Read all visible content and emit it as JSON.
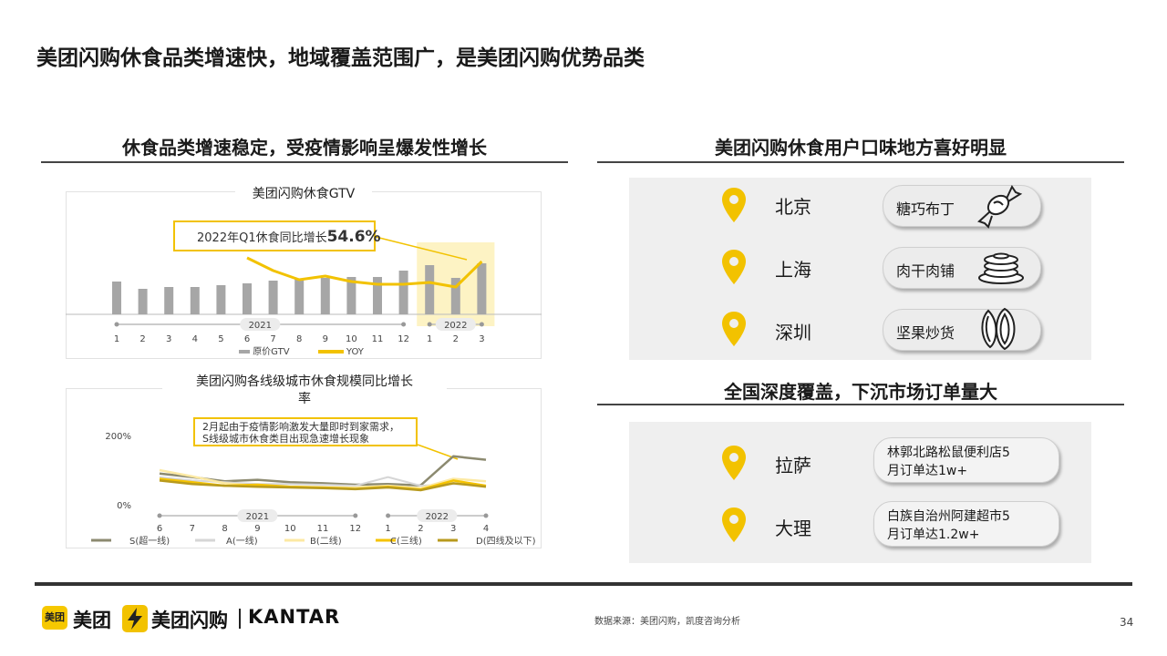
{
  "page": {
    "title": "美团闪购休食品类增速快，地域覆盖范围广，是美团闪购优势品类",
    "source": "数据来源：美团闪购，凯度咨询分析",
    "page_number": "34"
  },
  "left": {
    "heading": "休食品类增速稳定，受疫情影响呈爆发性增长"
  },
  "right": {
    "heading_top": "美团闪购休食用户口味地方喜好明显",
    "heading_bottom": "全国深度覆盖，下沉市场订单量大",
    "tastes": [
      {
        "city": "北京",
        "food": "糖巧布丁",
        "icon": "candy-icon"
      },
      {
        "city": "上海",
        "food": "肉干肉铺",
        "icon": "pancake-icon"
      },
      {
        "city": "深圳",
        "food": "坚果炒货",
        "icon": "nut-icon"
      }
    ],
    "coverage": [
      {
        "city": "拉萨",
        "store_line1": "林郭北路松鼠便利店5",
        "store_line2": "月订单达1w+"
      },
      {
        "city": "大理",
        "store_line1": "白族自治州阿建超市5",
        "store_line2": "月订单达1.2w+"
      }
    ]
  },
  "footer": {
    "logo1_box": "美团",
    "logo1_text": "美团",
    "logo2_text": "美团闪购",
    "logo3_text": "KANTAR"
  },
  "colors": {
    "accent": "#F2C200",
    "bar": "#a6a6a6",
    "highlight": "#fdf3c4",
    "series_S": "#8c8a70",
    "series_A": "#d6d6d6",
    "series_B": "#fce9a3",
    "series_C": "#f5c300",
    "series_D": "#b89a1e"
  },
  "chart_data": [
    {
      "type": "bar+line",
      "title": "美团闪购休食GTV",
      "callout_prefix": "2022年Q1休食同比增长",
      "callout_value": "54.6%",
      "categories": [
        "1",
        "2",
        "3",
        "4",
        "5",
        "6",
        "7",
        "8",
        "9",
        "10",
        "11",
        "12",
        "1",
        "2",
        "3"
      ],
      "year_groups": [
        {
          "label": "2021",
          "months": 12
        },
        {
          "label": "2022",
          "months": 3
        }
      ],
      "series": [
        {
          "name": "原价GTV",
          "kind": "bar",
          "values": [
            36,
            28,
            30,
            30,
            32,
            34,
            37,
            39,
            40,
            41,
            41,
            48,
            54,
            40,
            56
          ]
        },
        {
          "name": "YOY",
          "kind": "line",
          "values": [
            null,
            null,
            null,
            null,
            null,
            62,
            48,
            38,
            42,
            36,
            33,
            33,
            35,
            30,
            58
          ]
        }
      ],
      "highlight_range": [
        "1",
        "3"
      ],
      "ylim": [
        0,
        100
      ]
    },
    {
      "type": "line",
      "title": "美团闪购各线级城市休食规模同比增长率",
      "title_line1": "美团闪购各线级城市休食规模同比增长",
      "title_line2": "率",
      "callout_line1": "2月起由于疫情影响激发大量即时到家需求，",
      "callout_line2": "S线级城市休食类目出现急速增长现象",
      "yticks": [
        "200%",
        "0%"
      ],
      "categories": [
        "6",
        "7",
        "8",
        "9",
        "10",
        "11",
        "12",
        "1",
        "2",
        "3",
        "4"
      ],
      "year_groups": [
        {
          "label": "2021",
          "months": 7
        },
        {
          "label": "2022",
          "months": 4
        }
      ],
      "ylim": [
        0,
        200
      ],
      "series": [
        {
          "name": "S(超一线)",
          "values": [
            90,
            80,
            68,
            72,
            65,
            62,
            58,
            60,
            56,
            140,
            130
          ]
        },
        {
          "name": "A(一线)",
          "values": [
            80,
            70,
            65,
            60,
            60,
            58,
            55,
            80,
            55,
            60,
            55
          ]
        },
        {
          "name": "B(二线)",
          "values": [
            100,
            82,
            62,
            55,
            52,
            50,
            50,
            55,
            48,
            75,
            68
          ]
        },
        {
          "name": "C(三线)",
          "values": [
            75,
            65,
            55,
            58,
            52,
            50,
            46,
            52,
            44,
            70,
            55
          ]
        },
        {
          "name": "D(四线及以下)",
          "values": [
            70,
            60,
            55,
            52,
            50,
            48,
            45,
            50,
            42,
            62,
            52
          ]
        }
      ]
    }
  ]
}
